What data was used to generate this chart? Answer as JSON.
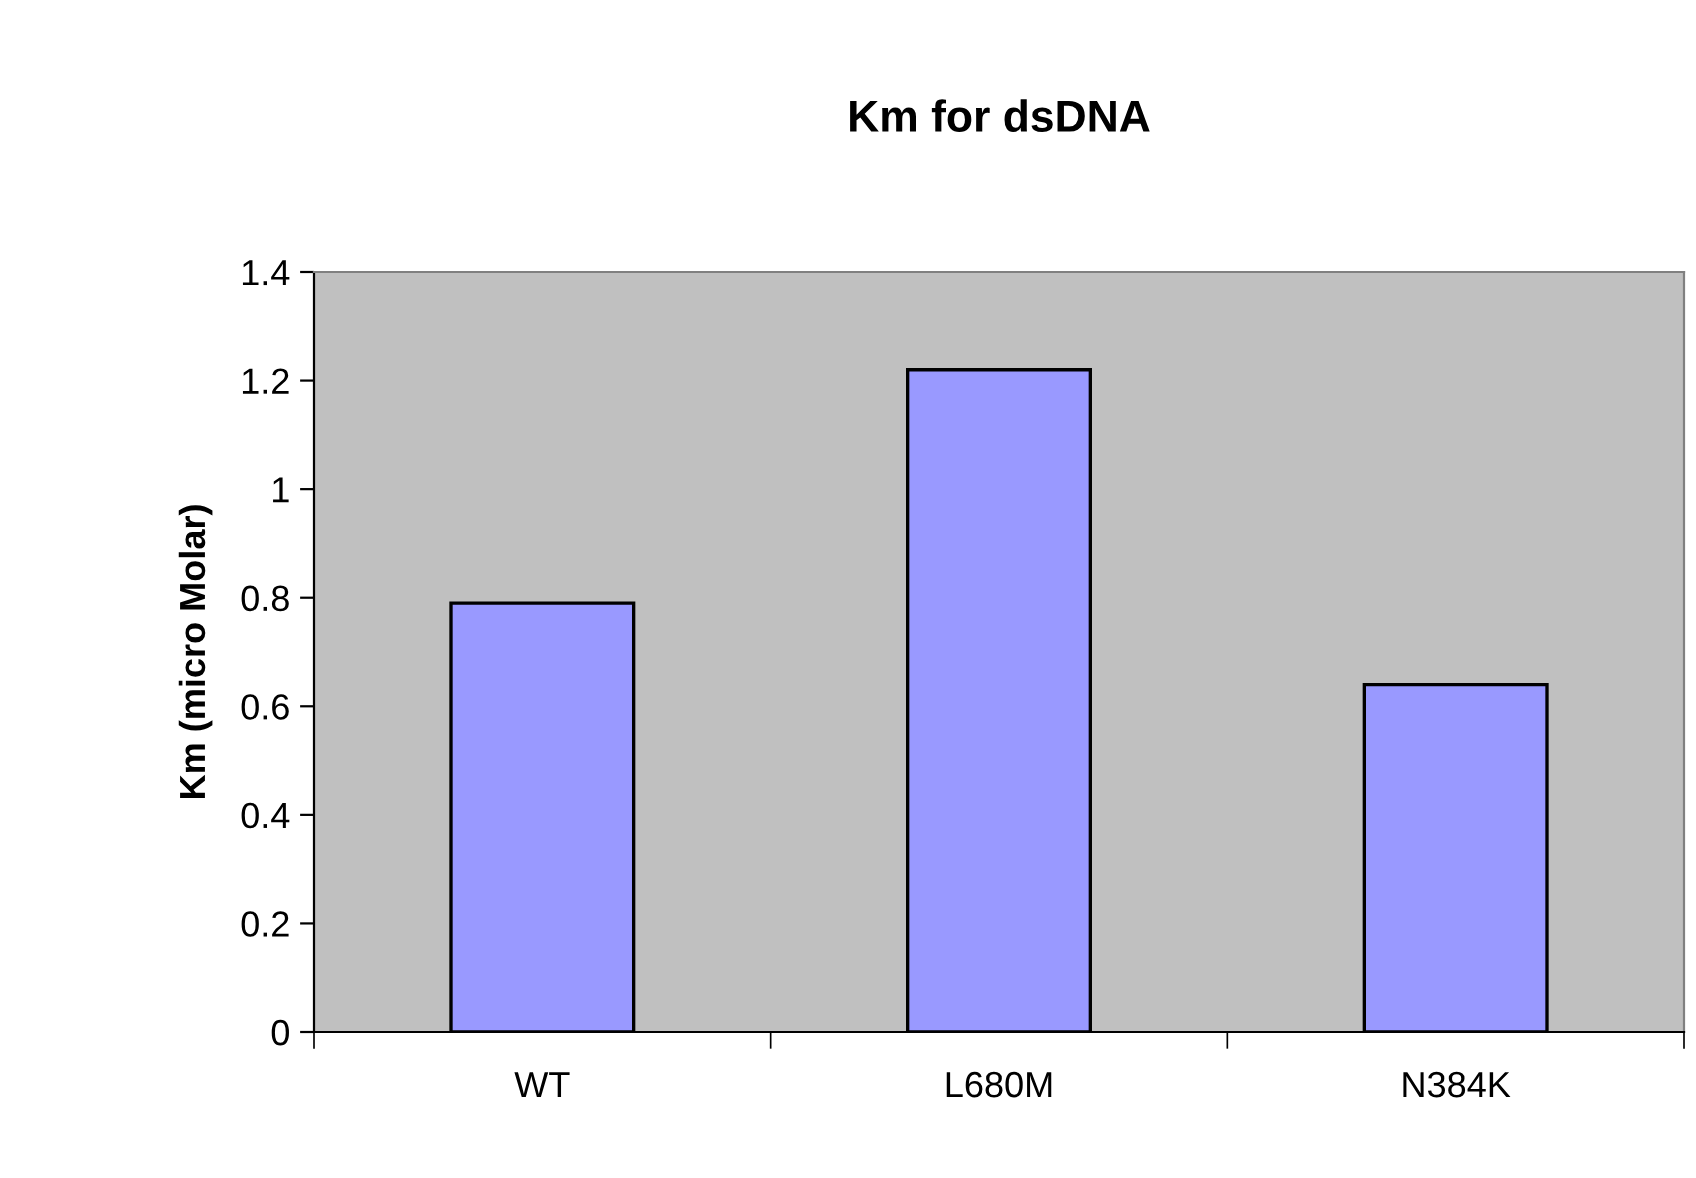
{
  "chart_data": {
    "type": "bar",
    "title": "Km for dsDNA",
    "ylabel": "Km (micro Molar)",
    "categories": [
      "WT",
      "L680M",
      "N384K"
    ],
    "values": [
      0.79,
      1.22,
      0.64
    ],
    "color": "#9999ff",
    "ylim": [
      0,
      1.4
    ],
    "yticks": [
      0,
      0.2,
      0.4,
      0.6,
      0.8,
      1,
      1.2,
      1.4
    ],
    "grid": false
  }
}
